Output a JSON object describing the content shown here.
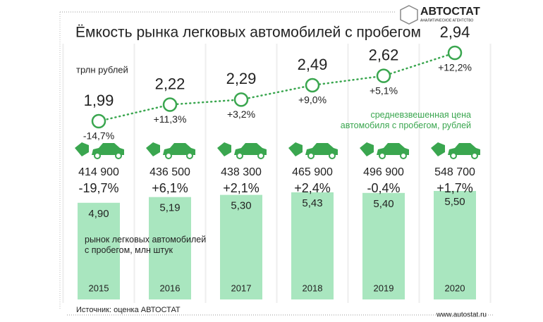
{
  "header": {
    "logo": "АВТОСТАТ",
    "logo_subtitle": "АНАЛИТИЧЕСКОЕ АГЕНТСТВО"
  },
  "chart_data": [
    {
      "type": "line",
      "title": "Ёмкость рынка легковых автомобилей с пробегом",
      "unit": "трлн рублей",
      "categories": [
        "2015",
        "2016",
        "2017",
        "2018",
        "2019",
        "2020"
      ],
      "values": [
        1.99,
        2.22,
        2.29,
        2.49,
        2.62,
        2.94
      ],
      "value_labels": [
        "1,99",
        "2,22",
        "2,29",
        "2,49",
        "2,62",
        "2,94"
      ],
      "change_values": [
        -14.7,
        11.3,
        3.2,
        9.0,
        5.1,
        12.2
      ],
      "change_labels": [
        "-14,7%",
        "+11,3%",
        "+3,2%",
        "+9,0%",
        "+5,1%",
        "+12,2%"
      ],
      "color": "#3aa64f"
    },
    {
      "type": "text",
      "label": "средневзвешенная цена автомобиля с пробегом, рублей",
      "values": [
        414900,
        436500,
        438300,
        465900,
        496900,
        548700
      ],
      "value_labels": [
        "414 900",
        "436 500",
        "438 300",
        "465 900",
        "496 900",
        "548 700"
      ],
      "change_values": [
        -19.7,
        6.1,
        2.1,
        2.4,
        -0.4,
        1.7
      ],
      "change_labels": [
        "-19,7%",
        "+6,1%",
        "+2,1%",
        "+2,4%",
        "-0,4%",
        "+1,7%"
      ],
      "color": "#3aa64f"
    },
    {
      "type": "bar",
      "label": "рынок легковых автомобилей с пробегом, млн штук",
      "categories": [
        "2015",
        "2016",
        "2017",
        "2018",
        "2019",
        "2020"
      ],
      "values": [
        4.9,
        5.19,
        5.3,
        5.43,
        5.4,
        5.5
      ],
      "value_labels": [
        "4,90",
        "5,19",
        "5,30",
        "5,43",
        "5,40",
        "5,50"
      ],
      "color": "#a9e6bf"
    }
  ],
  "footer": {
    "source": "Источник: оценка АВТОСТАТ",
    "website": "www.autostat.ru"
  }
}
